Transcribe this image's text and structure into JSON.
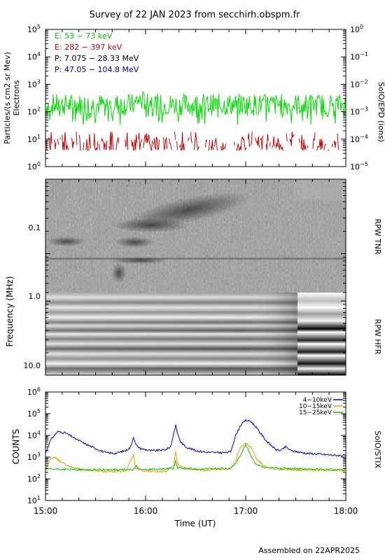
{
  "header": {
    "title": "Survey of 22 JAN 2023 from secchirh.obspm.fr",
    "footer": "Assembled on 22APR2025"
  },
  "colors": {
    "electrons_low": "#00dd00",
    "electrons_high": "#cc0000",
    "protons_low": "#000000",
    "protons_high": "#0000aa",
    "stix_4_10": "#0000cc",
    "stix_10_15": "#ff9900",
    "stix_15_25": "#00cc00"
  },
  "x_axis": {
    "label": "Time (UT)",
    "ticks": [
      "15:00",
      "16:00",
      "17:00",
      "18:00"
    ],
    "range_hours": [
      15,
      18
    ]
  },
  "chart_data": [
    {
      "type": "line",
      "name": "SoIO/EPD (ions)",
      "ylabel_left_line1": "Particles/(s cm2 sr Mev)",
      "ylabel_left_line2": "Electrons",
      "ylabel_right": "SoIO/EPD (ions)",
      "yscale": "log",
      "ylim": [
        1,
        100000
      ],
      "y2lim": [
        1e-05,
        1
      ],
      "left_ticks": [
        {
          "base": "10",
          "exp": "0"
        },
        {
          "base": "10",
          "exp": "1"
        },
        {
          "base": "10",
          "exp": "2"
        },
        {
          "base": "10",
          "exp": "3"
        },
        {
          "base": "10",
          "exp": "4"
        },
        {
          "base": "10",
          "exp": "5"
        }
      ],
      "right_ticks": [
        {
          "base": "10",
          "exp": "−5"
        },
        {
          "base": "10",
          "exp": "−4"
        },
        {
          "base": "10",
          "exp": "−3"
        },
        {
          "base": "10",
          "exp": "−2"
        },
        {
          "base": "10",
          "exp": "−1"
        },
        {
          "base": "10",
          "exp": "0"
        }
      ],
      "legend": [
        "E: 53 − 73 keV",
        "E: 282 − 397 keV",
        "P: 7.075 − 28.33 MeV",
        "P: 47.05 − 104.8 MeV"
      ],
      "series": [
        {
          "name": "E: 53 − 73 keV",
          "color": "#00dd00",
          "typical": 180,
          "min": 30,
          "max": 520
        },
        {
          "name": "E: 282 − 397 keV",
          "color": "#cc0000",
          "typical": 6,
          "min": 4,
          "max": 20
        }
      ]
    },
    {
      "type": "heatmap",
      "name": "RPW TNR",
      "ylabel": "Frequency (MHz)",
      "ylabel_right": "RPW TNR",
      "yscale": "log",
      "ylim": [
        0.03,
        1.0
      ],
      "y_ticks": [
        "0.1",
        "1.0"
      ],
      "features": [
        {
          "start_hours": 15.8,
          "end_hours": 16.9,
          "freq_mhz": [
            0.05,
            0.2
          ],
          "label": "drifting emission band"
        },
        {
          "start_hours": 15.8,
          "end_hours": 16.1,
          "freq_mhz": [
            0.15,
            0.4
          ],
          "label": "burst cluster"
        }
      ]
    },
    {
      "type": "heatmap",
      "name": "RPW HFR",
      "ylabel_right": "RPW HFR",
      "yscale": "log",
      "ylim": [
        1.0,
        13.0
      ],
      "y_ticks": [
        "1.0",
        "10.0"
      ],
      "mode_change_hours": 17.5
    },
    {
      "type": "line",
      "name": "SoIO/STIX",
      "ylabel": "COUNTS",
      "ylabel_right": "SoIO/STIX",
      "yscale": "log",
      "ylim": [
        10,
        1000000
      ],
      "ticks": [
        {
          "base": "10",
          "exp": "1"
        },
        {
          "base": "10",
          "exp": "2"
        },
        {
          "base": "10",
          "exp": "3"
        },
        {
          "base": "10",
          "exp": "4"
        },
        {
          "base": "10",
          "exp": "5"
        },
        {
          "base": "10",
          "exp": "6"
        }
      ],
      "legend": [
        "4−10keV",
        "10−15keV",
        "15−25keV"
      ],
      "series": [
        {
          "name": "4−10keV",
          "color": "#0000cc",
          "t": [
            15.0,
            15.05,
            15.12,
            15.2,
            15.3,
            15.4,
            15.5,
            15.6,
            15.7,
            15.8,
            15.85,
            15.88,
            15.9,
            15.92,
            15.95,
            16.0,
            16.05,
            16.1,
            16.2,
            16.25,
            16.3,
            16.32,
            16.35,
            16.4,
            16.5,
            16.6,
            16.7,
            16.8,
            16.85,
            16.9,
            16.95,
            17.0,
            17.05,
            17.1,
            17.2,
            17.3,
            17.35,
            17.4,
            17.45,
            17.5,
            17.6,
            17.7,
            17.8,
            17.9,
            18.0
          ],
          "values": [
            1500,
            6000,
            15000,
            13000,
            7000,
            4000,
            2500,
            1600,
            1500,
            2000,
            2800,
            9000,
            4000,
            3000,
            2500,
            2200,
            2000,
            2000,
            2200,
            3000,
            30000,
            12000,
            5000,
            3000,
            2000,
            1700,
            1600,
            1600,
            1800,
            10000,
            30000,
            50000,
            45000,
            25000,
            6000,
            2200,
            2000,
            3000,
            2000,
            1800,
            1500,
            1400,
            1300,
            1200,
            1200
          ]
        },
        {
          "name": "10−15keV",
          "color": "#ff9900",
          "t": [
            15.0,
            15.05,
            15.1,
            15.15,
            15.25,
            15.4,
            15.6,
            15.8,
            15.88,
            15.9,
            15.95,
            16.0,
            16.2,
            16.28,
            16.3,
            16.32,
            16.4,
            16.6,
            16.85,
            16.9,
            16.95,
            17.0,
            17.05,
            17.1,
            17.2,
            17.3,
            17.4,
            17.6,
            17.8,
            18.0
          ],
          "values": [
            250,
            800,
            1000,
            600,
            350,
            250,
            220,
            220,
            1300,
            300,
            250,
            220,
            220,
            400,
            1800,
            500,
            280,
            250,
            300,
            700,
            3000,
            4500,
            3000,
            900,
            350,
            280,
            260,
            250,
            250,
            240
          ]
        },
        {
          "name": "15−25keV",
          "color": "#00cc00",
          "t": [
            15.0,
            15.2,
            15.4,
            15.6,
            15.88,
            15.9,
            15.95,
            16.0,
            16.28,
            16.3,
            16.32,
            16.5,
            16.85,
            16.9,
            16.95,
            17.0,
            17.05,
            17.1,
            17.2,
            17.4,
            17.6,
            17.8,
            18.0
          ],
          "values": [
            280,
            270,
            260,
            260,
            260,
            400,
            270,
            260,
            300,
            700,
            320,
            280,
            300,
            500,
            1300,
            3800,
            1200,
            450,
            320,
            300,
            280,
            270,
            260
          ]
        }
      ]
    }
  ]
}
